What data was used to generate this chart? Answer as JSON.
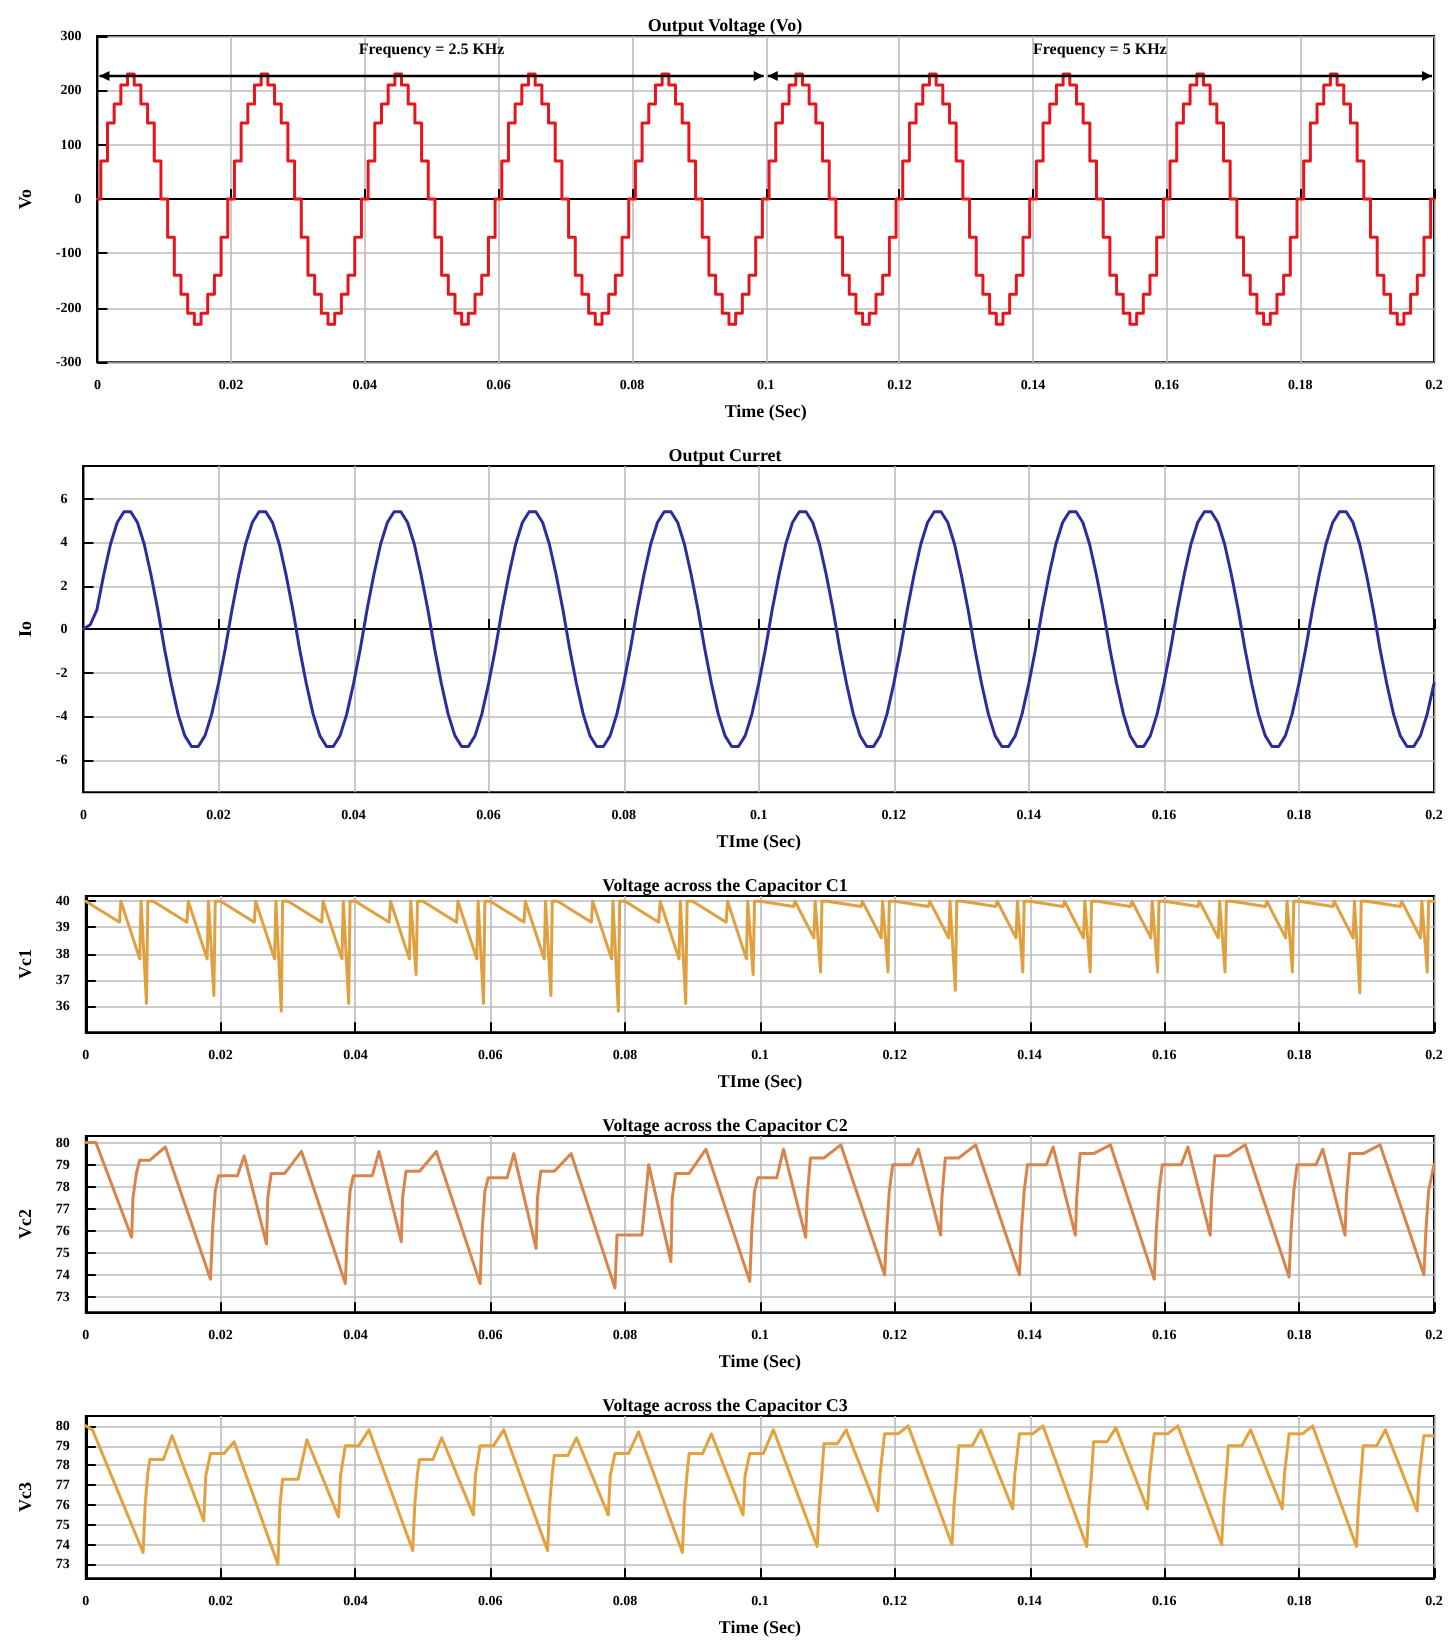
{
  "chart_data": [
    {
      "type": "step",
      "title": "Output Voltage (Vo)",
      "xlabel": "Time (Sec)",
      "ylabel": "Vo",
      "xlim": [
        0,
        0.2
      ],
      "xticks": [
        0,
        0.02,
        0.04,
        0.06,
        0.08,
        0.1,
        0.12,
        0.14,
        0.16,
        0.18,
        0.2
      ],
      "ylim": [
        -300,
        300
      ],
      "yticks": [
        -300,
        -200,
        -100,
        0,
        100,
        200,
        300
      ],
      "grid": true,
      "annotations": [
        "Frequency = 2.5 KHz",
        "Frequency = 5 KHz"
      ],
      "x": [
        0,
        0.001,
        0.002,
        0.003,
        0.004,
        0.005,
        0.006,
        0.007,
        0.008,
        0.009,
        0.01,
        0.011,
        0.012,
        0.013,
        0.014,
        0.015,
        0.016,
        0.017,
        0.018,
        0.019,
        0.02,
        0.021,
        0.022,
        0.023,
        0.024,
        0.025,
        0.026,
        0.027,
        0.028,
        0.029,
        0.03,
        0.031,
        0.032,
        0.033,
        0.034,
        0.035,
        0.036,
        0.037,
        0.038,
        0.039,
        0.04,
        0.041,
        0.042,
        0.043,
        0.044,
        0.045,
        0.046,
        0.047,
        0.048,
        0.049,
        0.05,
        0.051,
        0.052,
        0.053,
        0.054,
        0.055,
        0.056,
        0.057,
        0.058,
        0.059,
        0.06,
        0.061,
        0.062,
        0.063,
        0.064,
        0.065,
        0.066,
        0.067,
        0.068,
        0.069,
        0.07,
        0.071,
        0.072,
        0.073,
        0.074,
        0.075,
        0.076,
        0.077,
        0.078,
        0.079,
        0.08,
        0.081,
        0.082,
        0.083,
        0.084,
        0.085,
        0.086,
        0.087,
        0.088,
        0.089,
        0.09,
        0.091,
        0.092,
        0.093,
        0.094,
        0.095,
        0.096,
        0.097,
        0.098,
        0.099,
        0.1,
        0.101,
        0.102,
        0.103,
        0.104,
        0.105,
        0.106,
        0.107,
        0.108,
        0.109,
        0.11,
        0.111,
        0.112,
        0.113,
        0.114,
        0.115,
        0.116,
        0.117,
        0.118,
        0.119,
        0.12,
        0.121,
        0.122,
        0.123,
        0.124,
        0.125,
        0.126,
        0.127,
        0.128,
        0.129,
        0.13,
        0.131,
        0.132,
        0.133,
        0.134,
        0.135,
        0.136,
        0.137,
        0.138,
        0.139,
        0.14,
        0.141,
        0.142,
        0.143,
        0.144,
        0.145,
        0.146,
        0.147,
        0.148,
        0.149,
        0.15,
        0.151,
        0.152,
        0.153,
        0.154,
        0.155,
        0.156,
        0.157,
        0.158,
        0.159,
        0.16,
        0.161,
        0.162,
        0.163,
        0.164,
        0.165,
        0.166,
        0.167,
        0.168,
        0.169,
        0.17,
        0.171,
        0.172,
        0.173,
        0.174,
        0.175,
        0.176,
        0.177,
        0.178,
        0.179,
        0.18,
        0.181,
        0.182,
        0.183,
        0.184,
        0.185,
        0.186,
        0.187,
        0.188,
        0.189,
        0.19,
        0.191,
        0.192,
        0.193,
        0.194,
        0.195,
        0.196,
        0.197,
        0.198,
        0.199,
        0.2
      ],
      "series": [
        {
          "color": "#e8141c",
          "values": [
            0,
            70,
            140,
            175,
            210,
            230,
            210,
            175,
            140,
            70,
            0,
            -70,
            -140,
            -175,
            -210,
            -230,
            -210,
            -175,
            -140,
            -70,
            0,
            70,
            140,
            175,
            210,
            230,
            210,
            175,
            140,
            70,
            0,
            -70,
            -140,
            -175,
            -210,
            -230,
            -210,
            -175,
            -140,
            -70,
            0,
            70,
            140,
            175,
            210,
            230,
            210,
            175,
            140,
            70,
            0,
            -70,
            -140,
            -175,
            -210,
            -230,
            -210,
            -175,
            -140,
            -70,
            0,
            70,
            140,
            175,
            210,
            230,
            210,
            175,
            140,
            70,
            0,
            -70,
            -140,
            -175,
            -210,
            -230,
            -210,
            -175,
            -140,
            -70,
            0,
            70,
            140,
            175,
            210,
            230,
            210,
            175,
            140,
            70,
            0,
            -70,
            -140,
            -175,
            -210,
            -230,
            -210,
            -175,
            -140,
            -70,
            0,
            70,
            140,
            175,
            210,
            230,
            210,
            175,
            140,
            70,
            0,
            -70,
            -140,
            -175,
            -210,
            -230,
            -210,
            -175,
            -140,
            -70,
            0,
            70,
            140,
            175,
            210,
            230,
            210,
            175,
            140,
            70,
            0,
            -70,
            -140,
            -175,
            -210,
            -230,
            -210,
            -175,
            -140,
            -70,
            0,
            70,
            140,
            175,
            210,
            230,
            210,
            175,
            140,
            70,
            0,
            -70,
            -140,
            -175,
            -210,
            -230,
            -210,
            -175,
            -140,
            -70,
            0,
            70,
            140,
            175,
            210,
            230,
            210,
            175,
            140,
            70,
            0,
            -70,
            -140,
            -175,
            -210,
            -230,
            -210,
            -175,
            -140,
            -70,
            0,
            70,
            140,
            175,
            210,
            230,
            210,
            175,
            140,
            70,
            0,
            -70,
            -140,
            -175,
            -210,
            -230,
            -210,
            -175,
            -140,
            -70,
            0
          ]
        }
      ]
    },
    {
      "type": "line",
      "title": "Output Curret",
      "xlabel": "TIme (Sec)",
      "ylabel": "Io",
      "xlim": [
        0,
        0.2
      ],
      "xticks": [
        0,
        0.02,
        0.04,
        0.06,
        0.08,
        0.1,
        0.12,
        0.14,
        0.16,
        0.18,
        0.2
      ],
      "ylim": [
        -7.5,
        7.5
      ],
      "yticks": [
        -6,
        -4,
        -2,
        0,
        2,
        4,
        6
      ],
      "grid": true,
      "x": [
        0,
        0.001,
        0.002,
        0.003,
        0.004,
        0.005,
        0.006,
        0.007,
        0.008,
        0.009,
        0.01,
        0.011,
        0.012,
        0.013,
        0.014,
        0.015,
        0.016,
        0.017,
        0.018,
        0.019,
        0.02,
        0.021,
        0.022,
        0.023,
        0.024,
        0.025,
        0.026,
        0.027,
        0.028,
        0.029,
        0.03,
        0.031,
        0.032,
        0.033,
        0.034,
        0.035,
        0.036,
        0.037,
        0.038,
        0.039,
        0.04,
        0.041,
        0.042,
        0.043,
        0.044,
        0.045,
        0.046,
        0.047,
        0.048,
        0.049,
        0.05,
        0.051,
        0.052,
        0.053,
        0.054,
        0.055,
        0.056,
        0.057,
        0.058,
        0.059,
        0.06,
        0.061,
        0.062,
        0.063,
        0.064,
        0.065,
        0.066,
        0.067,
        0.068,
        0.069,
        0.07,
        0.071,
        0.072,
        0.073,
        0.074,
        0.075,
        0.076,
        0.077,
        0.078,
        0.079,
        0.08,
        0.081,
        0.082,
        0.083,
        0.084,
        0.085,
        0.086,
        0.087,
        0.088,
        0.089,
        0.09,
        0.091,
        0.092,
        0.093,
        0.094,
        0.095,
        0.096,
        0.097,
        0.098,
        0.099,
        0.1,
        0.101,
        0.102,
        0.103,
        0.104,
        0.105,
        0.106,
        0.107,
        0.108,
        0.109,
        0.11,
        0.111,
        0.112,
        0.113,
        0.114,
        0.115,
        0.116,
        0.117,
        0.118,
        0.119,
        0.12,
        0.121,
        0.122,
        0.123,
        0.124,
        0.125,
        0.126,
        0.127,
        0.128,
        0.129,
        0.13,
        0.131,
        0.132,
        0.133,
        0.134,
        0.135,
        0.136,
        0.137,
        0.138,
        0.139,
        0.14,
        0.141,
        0.142,
        0.143,
        0.144,
        0.145,
        0.146,
        0.147,
        0.148,
        0.149,
        0.15,
        0.151,
        0.152,
        0.153,
        0.154,
        0.155,
        0.156,
        0.157,
        0.158,
        0.159,
        0.16,
        0.161,
        0.162,
        0.163,
        0.164,
        0.165,
        0.166,
        0.167,
        0.168,
        0.169,
        0.17,
        0.171,
        0.172,
        0.173,
        0.174,
        0.175,
        0.176,
        0.177,
        0.178,
        0.179,
        0.18,
        0.181,
        0.182,
        0.183,
        0.184,
        0.185,
        0.186,
        0.187,
        0.188,
        0.189,
        0.19,
        0.191,
        0.192,
        0.193,
        0.194,
        0.195,
        0.196,
        0.197,
        0.198,
        0.199,
        0.2
      ],
      "series": [
        {
          "color": "#2a2d9a",
          "values": [
            0,
            0.2,
            0.9,
            2.5,
            3.9,
            4.9,
            5.4,
            5.4,
            4.9,
            3.9,
            2.5,
            0.9,
            -0.9,
            -2.5,
            -3.9,
            -4.9,
            -5.4,
            -5.4,
            -4.9,
            -3.9,
            -2.5,
            -0.9,
            0.9,
            2.5,
            3.9,
            4.9,
            5.4,
            5.4,
            4.9,
            3.9,
            2.5,
            0.9,
            -0.9,
            -2.5,
            -3.9,
            -4.9,
            -5.4,
            -5.4,
            -4.9,
            -3.9,
            -2.5,
            -0.9,
            0.9,
            2.5,
            3.9,
            4.9,
            5.4,
            5.4,
            4.9,
            3.9,
            2.5,
            0.9,
            -0.9,
            -2.5,
            -3.9,
            -4.9,
            -5.4,
            -5.4,
            -4.9,
            -3.9,
            -2.5,
            -0.9,
            0.9,
            2.5,
            3.9,
            4.9,
            5.4,
            5.4,
            4.9,
            3.9,
            2.5,
            0.9,
            -0.9,
            -2.5,
            -3.9,
            -4.9,
            -5.4,
            -5.4,
            -4.9,
            -3.9,
            -2.5,
            -0.9,
            0.9,
            2.5,
            3.9,
            4.9,
            5.4,
            5.4,
            4.9,
            3.9,
            2.5,
            0.9,
            -0.9,
            -2.5,
            -3.9,
            -4.9,
            -5.4,
            -5.4,
            -4.9,
            -3.9,
            -2.5,
            -0.9,
            0.9,
            2.5,
            3.9,
            4.9,
            5.4,
            5.4,
            4.9,
            3.9,
            2.5,
            0.9,
            -0.9,
            -2.5,
            -3.9,
            -4.9,
            -5.4,
            -5.4,
            -4.9,
            -3.9,
            -2.5,
            -0.9,
            0.9,
            2.5,
            3.9,
            4.9,
            5.4,
            5.4,
            4.9,
            3.9,
            2.5,
            0.9,
            -0.9,
            -2.5,
            -3.9,
            -4.9,
            -5.4,
            -5.4,
            -4.9,
            -3.9,
            -2.5,
            -0.9,
            0.9,
            2.5,
            3.9,
            4.9,
            5.4,
            5.4,
            4.9,
            3.9,
            2.5,
            0.9,
            -0.9,
            -2.5,
            -3.9,
            -4.9,
            -5.4,
            -5.4,
            -4.9,
            -3.9,
            -2.5,
            -0.9,
            0.9,
            2.5,
            3.9,
            4.9,
            5.4,
            5.4,
            4.9,
            3.9,
            2.5,
            0.9,
            -0.9,
            -2.5,
            -3.9,
            -4.9,
            -5.4,
            -5.4,
            -4.9,
            -3.9,
            -2.5,
            -0.9,
            0.9,
            2.5,
            3.9,
            4.9,
            5.4,
            5.4,
            4.9,
            3.9,
            2.5,
            0.9,
            -0.9,
            -2.5,
            -3.9,
            -4.9,
            -5.4,
            -5.4,
            -4.9,
            -3.9,
            -2.5
          ]
        }
      ]
    },
    {
      "type": "line",
      "title": "Voltage across the Capacitor C1",
      "xlabel": "TIme (Sec)",
      "ylabel": "Vc1",
      "xlim": [
        0,
        0.2
      ],
      "xticks": [
        0,
        0.02,
        0.04,
        0.06,
        0.08,
        0.1,
        0.12,
        0.14,
        0.16,
        0.18,
        0.2
      ],
      "ylim": [
        35,
        40.2
      ],
      "yticks": [
        36,
        37,
        38,
        39,
        40
      ],
      "grid": true,
      "x": [
        0,
        0.005,
        0.0052,
        0.008,
        0.0082,
        0.009,
        0.0092,
        0.01,
        0.015,
        0.0152,
        0.018,
        0.0182,
        0.019,
        0.0192,
        0.02,
        0.025,
        0.0252,
        0.028,
        0.0282,
        0.029,
        0.0292,
        0.03,
        0.035,
        0.0352,
        0.038,
        0.0382,
        0.039,
        0.0392,
        0.04,
        0.045,
        0.0452,
        0.048,
        0.0482,
        0.049,
        0.0492,
        0.05,
        0.055,
        0.0552,
        0.058,
        0.0582,
        0.059,
        0.0592,
        0.06,
        0.065,
        0.0652,
        0.068,
        0.0682,
        0.069,
        0.0692,
        0.07,
        0.075,
        0.0752,
        0.078,
        0.0782,
        0.079,
        0.0792,
        0.08,
        0.085,
        0.0852,
        0.088,
        0.0882,
        0.089,
        0.0892,
        0.09,
        0.095,
        0.0952,
        0.098,
        0.0982,
        0.099,
        0.0992,
        0.1,
        0.105,
        0.1052,
        0.108,
        0.1082,
        0.109,
        0.1092,
        0.11,
        0.115,
        0.1152,
        0.118,
        0.1182,
        0.119,
        0.1192,
        0.12,
        0.125,
        0.1252,
        0.128,
        0.1282,
        0.129,
        0.1292,
        0.13,
        0.135,
        0.1352,
        0.138,
        0.1382,
        0.139,
        0.1392,
        0.14,
        0.145,
        0.1452,
        0.148,
        0.1482,
        0.149,
        0.1492,
        0.15,
        0.155,
        0.1552,
        0.158,
        0.1582,
        0.159,
        0.1592,
        0.16,
        0.165,
        0.1652,
        0.168,
        0.1682,
        0.169,
        0.1692,
        0.17,
        0.175,
        0.1752,
        0.178,
        0.1782,
        0.179,
        0.1792,
        0.18,
        0.185,
        0.1852,
        0.188,
        0.1882,
        0.189,
        0.1892,
        0.19,
        0.195,
        0.1952,
        0.198,
        0.1982,
        0.199,
        0.1992,
        0.2
      ],
      "series": [
        {
          "color": "#e0a040",
          "values": [
            40,
            39.2,
            40,
            37.8,
            40,
            36.1,
            40,
            40,
            39.2,
            40,
            37.8,
            40,
            36.4,
            40,
            40,
            39.2,
            40,
            37.8,
            40,
            35.8,
            40,
            40,
            39.2,
            40,
            37.8,
            40,
            36.1,
            40,
            40,
            39.2,
            40,
            37.8,
            40,
            37.2,
            40,
            40,
            39.2,
            40,
            37.8,
            40,
            36.1,
            40,
            40,
            39.2,
            40,
            37.8,
            40,
            36.4,
            40,
            40,
            39.2,
            40,
            37.8,
            40,
            35.8,
            40,
            40,
            39.2,
            40,
            37.8,
            40,
            36.1,
            40,
            40,
            39.2,
            40,
            37.8,
            40,
            37.2,
            40,
            40,
            39.8,
            40,
            38.6,
            40,
            37.3,
            40,
            40,
            39.8,
            40,
            38.6,
            40,
            37.3,
            40,
            40,
            39.8,
            40,
            38.6,
            40,
            36.6,
            40,
            40,
            39.8,
            40,
            38.6,
            40,
            37.3,
            40,
            40,
            39.8,
            40,
            38.6,
            40,
            37.3,
            40,
            40,
            39.8,
            40,
            38.6,
            40,
            37.3,
            40,
            40,
            39.8,
            40,
            38.6,
            40,
            37.3,
            40,
            40,
            39.8,
            40,
            38.6,
            40,
            37.3,
            40,
            40,
            39.8,
            40,
            38.6,
            40,
            36.5,
            40,
            40,
            39.8,
            40,
            38.6,
            40,
            37.3,
            40,
            40
          ]
        }
      ]
    },
    {
      "type": "line",
      "title": "Voltage across the Capacitor C2",
      "xlabel": "Time (Sec)",
      "ylabel": "Vc2",
      "xlim": [
        0,
        0.2
      ],
      "xticks": [
        0,
        0.02,
        0.04,
        0.06,
        0.08,
        0.1,
        0.12,
        0.14,
        0.16,
        0.18,
        0.2
      ],
      "ylim": [
        72.3,
        80.3
      ],
      "yticks": [
        73,
        74,
        75,
        76,
        77,
        78,
        79,
        80
      ],
      "grid": true,
      "x": [
        0,
        0.0015,
        0.0068,
        0.007,
        0.0075,
        0.008,
        0.0095,
        0.0118,
        0.0185,
        0.0188,
        0.0192,
        0.0197,
        0.0225,
        0.0235,
        0.0268,
        0.027,
        0.0275,
        0.0295,
        0.032,
        0.0385,
        0.0388,
        0.0392,
        0.0397,
        0.0425,
        0.0435,
        0.0468,
        0.047,
        0.0475,
        0.0495,
        0.052,
        0.0585,
        0.0588,
        0.0592,
        0.0597,
        0.0625,
        0.0635,
        0.0668,
        0.067,
        0.0675,
        0.0695,
        0.072,
        0.0785,
        0.0788,
        0.0792,
        0.0797,
        0.0825,
        0.0835,
        0.0868,
        0.087,
        0.0875,
        0.0895,
        0.092,
        0.0985,
        0.0988,
        0.0992,
        0.0997,
        0.1025,
        0.1035,
        0.1068,
        0.107,
        0.1075,
        0.1095,
        0.112,
        0.1185,
        0.1188,
        0.1192,
        0.1197,
        0.1225,
        0.1235,
        0.1268,
        0.127,
        0.1275,
        0.1295,
        0.132,
        0.1385,
        0.1388,
        0.1392,
        0.1397,
        0.1425,
        0.1435,
        0.1468,
        0.147,
        0.1475,
        0.1495,
        0.152,
        0.1585,
        0.1588,
        0.1592,
        0.1597,
        0.1625,
        0.1635,
        0.1668,
        0.167,
        0.1675,
        0.1695,
        0.172,
        0.1785,
        0.1788,
        0.1792,
        0.1797,
        0.1825,
        0.1835,
        0.1868,
        0.187,
        0.1875,
        0.1895,
        0.192,
        0.1985,
        0.1988,
        0.1992,
        0.2
      ],
      "series": [
        {
          "color": "#d9844a",
          "values": [
            80,
            80,
            75.7,
            77.5,
            78.6,
            79.2,
            79.2,
            79.8,
            73.8,
            76,
            77.8,
            78.5,
            78.5,
            79.4,
            75.4,
            77.5,
            78.6,
            78.6,
            79.6,
            73.6,
            76,
            77.8,
            78.5,
            78.5,
            79.6,
            75.5,
            77.5,
            78.7,
            78.7,
            79.6,
            73.6,
            76,
            77.8,
            78.4,
            78.4,
            79.5,
            75.2,
            77.5,
            78.7,
            78.7,
            79.5,
            73.4,
            75.8,
            75.8,
            75.8,
            75.8,
            79.0,
            74.6,
            77.5,
            78.6,
            78.6,
            79.7,
            73.7,
            76,
            77.8,
            78.4,
            78.4,
            79.7,
            75.7,
            77.5,
            79.3,
            79.3,
            79.9,
            74.0,
            76,
            77.8,
            79.0,
            79.0,
            79.7,
            75.8,
            77.5,
            79.3,
            79.3,
            79.9,
            74.0,
            76,
            77.8,
            79.0,
            79.0,
            79.8,
            75.8,
            77.5,
            79.5,
            79.5,
            79.9,
            73.8,
            76,
            77.8,
            79.0,
            79.0,
            79.8,
            75.8,
            77.5,
            79.4,
            79.4,
            79.9,
            73.9,
            76,
            77.8,
            79.0,
            79.0,
            79.7,
            75.8,
            77.5,
            79.5,
            79.5,
            79.9,
            74.0,
            76,
            77.8,
            79.0
          ]
        }
      ]
    },
    {
      "type": "line",
      "title": "Voltage across the Capacitor C3",
      "xlabel": "Time (Sec)",
      "ylabel": "Vc3",
      "xlim": [
        0,
        0.2
      ],
      "xticks": [
        0,
        0.02,
        0.04,
        0.06,
        0.08,
        0.1,
        0.12,
        0.14,
        0.16,
        0.18,
        0.2
      ],
      "ylim": [
        72.3,
        80.5
      ],
      "yticks": [
        73,
        74,
        75,
        76,
        77,
        78,
        79,
        80
      ],
      "grid": true,
      "x": [
        0,
        0.001,
        0.0085,
        0.0088,
        0.0092,
        0.0095,
        0.0115,
        0.0128,
        0.0175,
        0.0178,
        0.0185,
        0.0205,
        0.022,
        0.0285,
        0.0288,
        0.0292,
        0.0295,
        0.0315,
        0.0328,
        0.0375,
        0.0378,
        0.0385,
        0.0405,
        0.042,
        0.0485,
        0.0488,
        0.0492,
        0.0495,
        0.0515,
        0.0528,
        0.0575,
        0.0578,
        0.0585,
        0.0605,
        0.062,
        0.0685,
        0.0688,
        0.0692,
        0.0695,
        0.0715,
        0.0728,
        0.0775,
        0.0778,
        0.0785,
        0.0805,
        0.082,
        0.0885,
        0.0888,
        0.0892,
        0.0895,
        0.0915,
        0.0928,
        0.0975,
        0.0978,
        0.0985,
        0.1005,
        0.102,
        0.1085,
        0.1088,
        0.1092,
        0.1095,
        0.1115,
        0.1128,
        0.1175,
        0.1178,
        0.1185,
        0.1205,
        0.122,
        0.1285,
        0.1288,
        0.1292,
        0.1295,
        0.1315,
        0.1328,
        0.1375,
        0.1378,
        0.1385,
        0.1405,
        0.142,
        0.1485,
        0.1488,
        0.1492,
        0.1495,
        0.1515,
        0.1528,
        0.1575,
        0.1578,
        0.1585,
        0.1605,
        0.162,
        0.1685,
        0.1688,
        0.1692,
        0.1695,
        0.1715,
        0.1728,
        0.1775,
        0.1778,
        0.1785,
        0.1805,
        0.182,
        0.1885,
        0.1888,
        0.1892,
        0.1895,
        0.1915,
        0.1928,
        0.1975,
        0.1978,
        0.1985,
        0.2
      ],
      "series": [
        {
          "color": "#e3a23e",
          "values": [
            80,
            79.8,
            73.6,
            76,
            77.6,
            78.3,
            78.3,
            79.5,
            75.2,
            77.5,
            78.6,
            78.6,
            79.2,
            73.0,
            76,
            77.3,
            77.3,
            77.3,
            79.3,
            75.4,
            77.5,
            79.0,
            79.0,
            79.8,
            73.7,
            76,
            77.6,
            78.3,
            78.3,
            79.4,
            75.5,
            77.5,
            79.0,
            79.0,
            79.8,
            73.7,
            76,
            77.6,
            78.5,
            78.5,
            79.4,
            75.5,
            77.5,
            78.6,
            78.6,
            79.7,
            73.6,
            76,
            77.6,
            78.6,
            78.6,
            79.6,
            75.5,
            77.5,
            78.6,
            78.6,
            79.8,
            73.9,
            76,
            77.6,
            79.1,
            79.1,
            79.8,
            75.7,
            77.5,
            79.6,
            79.6,
            80.0,
            74.0,
            76,
            77.6,
            79.0,
            79.0,
            79.8,
            75.8,
            77.5,
            79.6,
            79.6,
            80.0,
            73.9,
            76,
            77.6,
            79.2,
            79.2,
            79.9,
            75.8,
            77.5,
            79.6,
            79.6,
            80.0,
            74.0,
            76,
            77.6,
            79.0,
            79.0,
            79.8,
            75.8,
            77.5,
            79.6,
            79.6,
            80.0,
            73.9,
            76,
            77.6,
            79.0,
            79.0,
            79.8,
            75.7,
            77.5,
            79.5,
            79.5
          ]
        }
      ]
    }
  ]
}
